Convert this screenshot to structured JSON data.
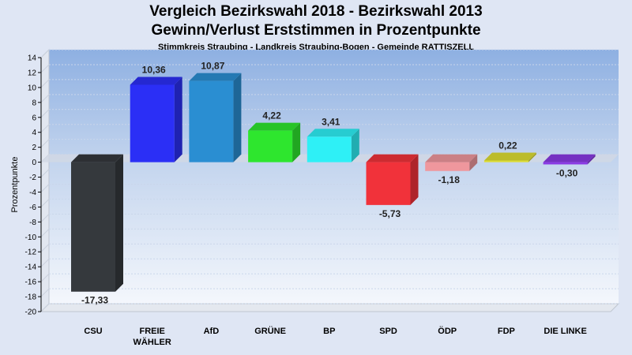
{
  "title": "Vergleich Bezirkswahl 2018 - Bezirkswahl 2013",
  "subtitle": "Gewinn/Verlust Erststimmen in Prozentpunkte",
  "subsubtitle": "Stimmkreis Straubing - Landkreis Straubing-Bogen - Gemeinde RATTISZELL",
  "chart_data": {
    "type": "bar",
    "title": "Vergleich Bezirkswahl 2018 - Bezirkswahl 2013",
    "subtitle": "Gewinn/Verlust Erststimmen in Prozentpunkte",
    "ylabel": "Prozentpunkte",
    "xlabel": "",
    "ylim": [
      -20,
      14
    ],
    "yticks": [
      14,
      12,
      10,
      8,
      6,
      4,
      2,
      0,
      -2,
      -4,
      -6,
      -8,
      -10,
      -12,
      -14,
      -16,
      -18,
      -20
    ],
    "grid": true,
    "legend": "none",
    "categories": [
      {
        "lines": [
          "CSU"
        ]
      },
      {
        "lines": [
          "FREIE",
          "WÄHLER"
        ]
      },
      {
        "lines": [
          "AfD"
        ]
      },
      {
        "lines": [
          "GRÜNE"
        ]
      },
      {
        "lines": [
          "BP"
        ]
      },
      {
        "lines": [
          "SPD"
        ]
      },
      {
        "lines": [
          "ÖDP"
        ]
      },
      {
        "lines": [
          "FDP"
        ]
      },
      {
        "lines": [
          "DIE LINKE"
        ]
      }
    ],
    "values": [
      -17.33,
      10.36,
      10.87,
      4.22,
      3.41,
      -5.73,
      -1.18,
      0.22,
      -0.3
    ],
    "labels": [
      "-17,33",
      "10,36",
      "10,87",
      "4,22",
      "3,41",
      "-5,73",
      "-1,18",
      "0,22",
      "-0,30"
    ],
    "colors": [
      "#35393d",
      "#2b2ff6",
      "#2a8ed2",
      "#2ee62e",
      "#2ef0f6",
      "#f1323a",
      "#ef979d",
      "#dddd33",
      "#8a3ae4"
    ]
  }
}
